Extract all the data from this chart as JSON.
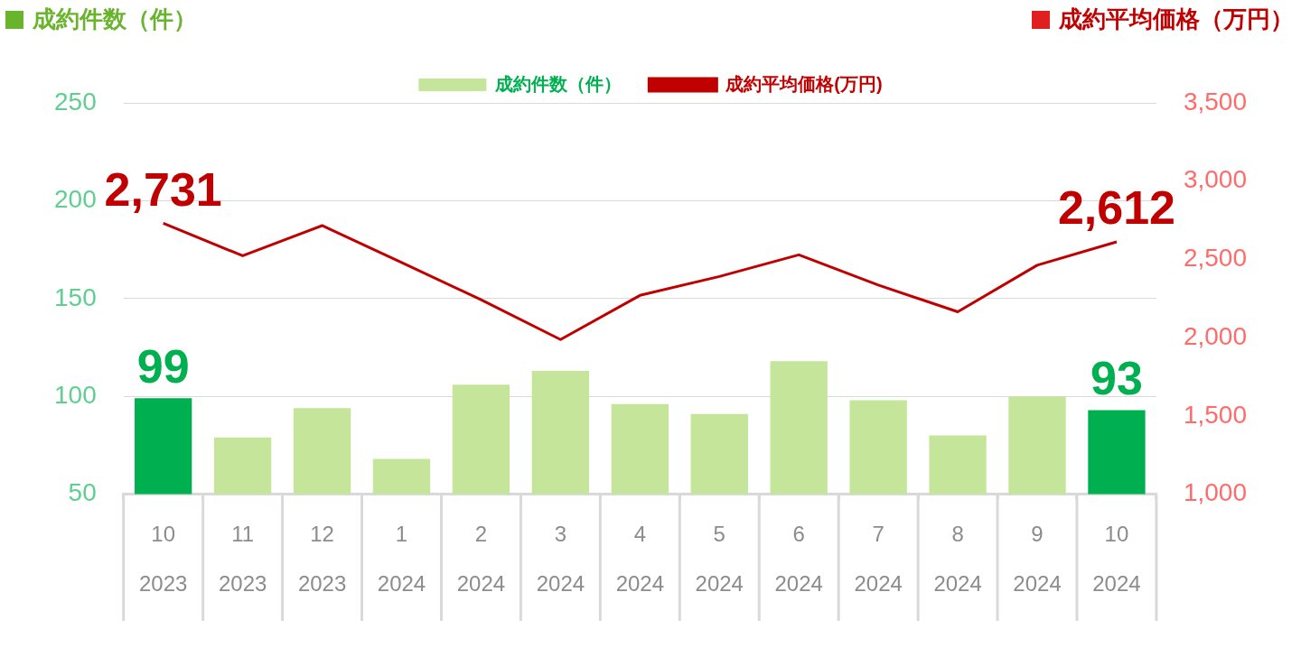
{
  "chart_data": {
    "type": "bar",
    "ylabel": "成約件数（件）",
    "y2label": "成約平均価格（万円）",
    "categories": [
      "10\n2023",
      "11\n2023",
      "12\n2023",
      "1\n2024",
      "2\n2024",
      "3\n2024",
      "4\n2024",
      "5\n2024",
      "6\n2024",
      "7\n2024",
      "8\n2024",
      "9\n2024",
      "10\n2024"
    ],
    "series": [
      {
        "name": "成約件数（件）",
        "color": "#c4e59a",
        "colors": [
          "#00b050",
          "#c4e59a",
          "#c4e59a",
          "#c4e59a",
          "#c4e59a",
          "#c4e59a",
          "#c4e59a",
          "#c4e59a",
          "#c4e59a",
          "#c4e59a",
          "#c4e59a",
          "#c4e59a",
          "#00b050"
        ],
        "values": [
          99,
          79,
          94,
          68,
          106,
          113,
          96,
          91,
          118,
          98,
          80,
          100,
          93
        ],
        "value_labels": [
          "99",
          null,
          null,
          null,
          null,
          null,
          null,
          null,
          null,
          null,
          null,
          null,
          "93"
        ]
      },
      {
        "name": "成約平均価格(万円)",
        "type": "line",
        "axis": "y2",
        "color": "#c00000",
        "values": [
          2731,
          2523,
          2716,
          2480,
          2242,
          1988,
          2270,
          2391,
          2529,
          2336,
          2165,
          2463,
          2612
        ],
        "value_labels": [
          "2,731",
          null,
          null,
          null,
          null,
          null,
          null,
          null,
          null,
          null,
          null,
          null,
          "2,612"
        ]
      }
    ],
    "ylim": [
      50,
      250
    ],
    "yticks": [
      50,
      100,
      150,
      200,
      250
    ],
    "y2lim": [
      1000,
      3500
    ],
    "y2ticks": [
      {
        "value": 1000,
        "label": "1,000"
      },
      {
        "value": 1500,
        "label": "1,500"
      },
      {
        "value": 2000,
        "label": "2,000"
      },
      {
        "value": 2500,
        "label": "2,500"
      },
      {
        "value": 3000,
        "label": "3,000"
      },
      {
        "value": 3500,
        "label": "3,500"
      }
    ],
    "grid": "y",
    "legend": "top",
    "marker": "none",
    "line_style": "solid"
  }
}
